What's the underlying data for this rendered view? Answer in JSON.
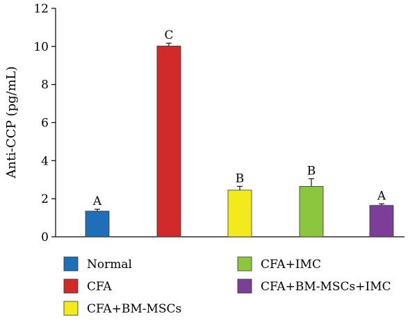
{
  "chart_data": {
    "type": "bar",
    "ylabel": "Anti-CCP (pg/mL)",
    "ylim": [
      0,
      12
    ],
    "yticks": [
      0,
      2,
      4,
      6,
      8,
      10,
      12
    ],
    "grid": false,
    "legend_position": "bottom",
    "categories": [
      "Normal",
      "CFA",
      "CFA+BM-MSCs",
      "CFA+IMC",
      "CFA+BM-MSCs+IMC"
    ],
    "values": [
      1.35,
      10.02,
      2.45,
      2.65,
      1.65
    ],
    "errors": [
      0.1,
      0.15,
      0.2,
      0.4,
      0.08
    ],
    "significance_labels": [
      "A",
      "C",
      "B",
      "B",
      "A"
    ],
    "colors": [
      "#1f6fb8",
      "#d12a2a",
      "#f3ea1d",
      "#8cc63f",
      "#7b3f98"
    ]
  }
}
